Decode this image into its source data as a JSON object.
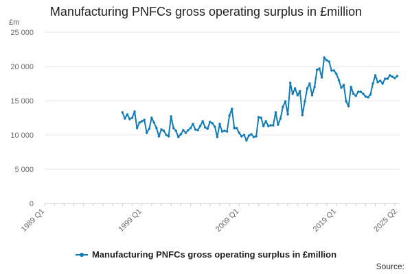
{
  "chart_data": {
    "type": "line",
    "title": "Manufacturing PNFCs gross operating surplus in £million",
    "ylabel": "£m",
    "ylim": [
      0,
      25000
    ],
    "xlim": [
      1989,
      2025.5
    ],
    "y_ticks": [
      0,
      5000,
      10000,
      15000,
      20000,
      25000
    ],
    "y_tick_labels": [
      "0",
      "5 000",
      "10 000",
      "15 000",
      "20 000",
      "25 000"
    ],
    "x_ticks": [
      1989,
      1999,
      2009,
      2019,
      2025.25
    ],
    "x_tick_labels": [
      "1989 Q1",
      "1999 Q1",
      "2009 Q1",
      "2019 Q1",
      "2025 Q2"
    ],
    "grid": true,
    "legend_position": "bottom",
    "source_label": "Source:",
    "colors": {
      "series": "#0f7ab8",
      "grid": "#e6e6e6",
      "axis": "#cccccc"
    },
    "series": [
      {
        "name": "Manufacturing PNFCs gross operating surplus in £million",
        "x_start": 1997,
        "x_step": 0.25,
        "values": [
          13300,
          12400,
          13000,
          12300,
          12500,
          13400,
          11000,
          11800,
          12000,
          12200,
          10300,
          10900,
          12500,
          11800,
          11000,
          9800,
          10800,
          10600,
          10000,
          9800,
          12700,
          11000,
          10600,
          9700,
          10100,
          10700,
          10300,
          10700,
          11000,
          11600,
          10800,
          10700,
          11300,
          12000,
          11100,
          10900,
          11900,
          11700,
          11200,
          9700,
          11600,
          10500,
          10600,
          10500,
          12800,
          13800,
          11000,
          11000,
          10300,
          9800,
          10000,
          9200,
          9900,
          10100,
          9700,
          9800,
          12600,
          12500,
          11300,
          12000,
          11300,
          11400,
          11400,
          13300,
          11500,
          12400,
          14100,
          14900,
          13000,
          17600,
          16000,
          16800,
          15800,
          16400,
          12900,
          14900,
          16800,
          17500,
          15800,
          17000,
          19500,
          19700,
          18400,
          21300,
          20900,
          20700,
          19400,
          19400,
          18900,
          18000,
          16900,
          17300,
          14900,
          14200,
          17000,
          16000,
          15700,
          16300,
          16300,
          16000,
          15600,
          15500,
          15900,
          17500,
          18700,
          17700,
          17900,
          17500,
          18200,
          18200,
          18700,
          18500,
          18300,
          18600
        ]
      }
    ]
  }
}
